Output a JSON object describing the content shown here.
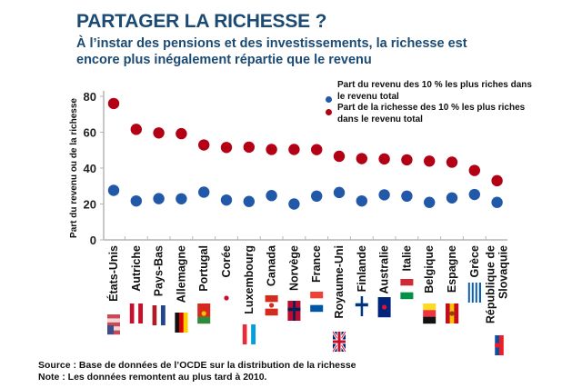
{
  "header": {
    "title": "PARTAGER LA RICHESSE ?",
    "subtitle": "À l’instar des pensions et des investissements, la richesse est encore plus inégalement répartie que le revenu"
  },
  "footer": {
    "source": "Source : Base de données de l’OCDE sur la distribution de la richesse",
    "note": "Note : Les données remontent au plus tard à 2010."
  },
  "colors": {
    "title": "#1b4a72",
    "income": "#2159a8",
    "wealth": "#b30014",
    "axis": "#b5b5b5"
  },
  "chart_data": {
    "type": "scatter",
    "title": "PARTAGER LA RICHESSE ?",
    "xlabel": "",
    "ylabel": "Part du revenu ou de la richesse",
    "ylim": [
      0,
      80
    ],
    "yticks": [
      0,
      20,
      40,
      60,
      80
    ],
    "grid": false,
    "legend_position": "top-right",
    "categories": [
      "États-Unis",
      "Autriche",
      "Pays-Bas",
      "Allemagne",
      "Portugal",
      "Corée",
      "Luxembourg",
      "Canada",
      "Norvège",
      "France",
      "Royaume-Uni",
      "Finlande",
      "Australie",
      "Italie",
      "Belgique",
      "Espagne",
      "Grèce",
      "République de Slovaquie"
    ],
    "category_lines": [
      [
        "États-Unis"
      ],
      [
        "Autriche"
      ],
      [
        "Pays-Bas"
      ],
      [
        "Allemagne"
      ],
      [
        "Portugal"
      ],
      [
        "Corée"
      ],
      [
        "Luxembourg"
      ],
      [
        "Canada"
      ],
      [
        "Norvège"
      ],
      [
        "France"
      ],
      [
        "Royaume-Uni"
      ],
      [
        "Finlande"
      ],
      [
        "Australie"
      ],
      [
        "Italie"
      ],
      [
        "Belgique"
      ],
      [
        "Espagne"
      ],
      [
        "Grèce"
      ],
      [
        "République de",
        "Slovaquie"
      ]
    ],
    "flags": [
      "us-flag",
      "austria-flag",
      "netherlands-flag",
      "germany-flag",
      "portugal-flag",
      "korea-flag",
      "luxembourg-flag",
      "canada-flag",
      "norway-flag",
      "france-flag",
      "uk-flag",
      "finland-flag",
      "australia-flag",
      "italy-flag",
      "belgium-flag",
      "spain-flag",
      "greece-flag",
      "slovakia-flag"
    ],
    "series": [
      {
        "name": "Part du revenu des 10 % les plus riches dans le revenu total",
        "color": "#2159a8",
        "values": [
          27.6,
          21.7,
          23.0,
          22.9,
          26.6,
          22.2,
          21.4,
          24.7,
          20.0,
          24.4,
          26.4,
          21.7,
          25.1,
          24.4,
          20.9,
          23.4,
          25.3,
          20.9
        ]
      },
      {
        "name": "Part de la richesse des 10 % les plus riches dans le revenu total",
        "color": "#b30014",
        "values": [
          76.0,
          61.6,
          59.6,
          59.2,
          52.9,
          51.5,
          51.7,
          50.4,
          50.4,
          50.3,
          46.6,
          45.3,
          45.1,
          44.6,
          43.9,
          43.3,
          38.7,
          33.0
        ]
      }
    ]
  }
}
